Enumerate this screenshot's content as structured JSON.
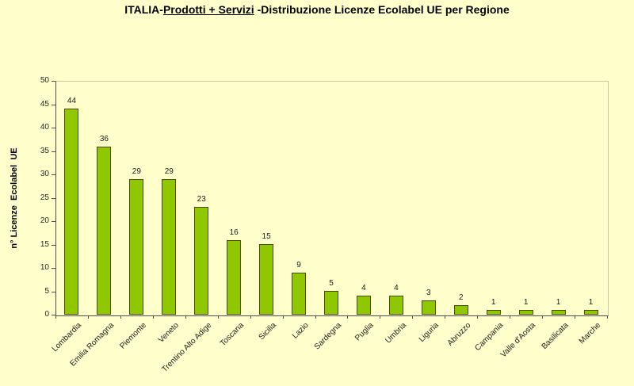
{
  "title": {
    "prefix": "ITALIA-",
    "underlined": "Prodotti + Servizi",
    "suffix": " -Distribuzione Licenze Ecolabel UE per Regione"
  },
  "chart_data": {
    "type": "bar",
    "title": "ITALIA-Prodotti + Servizi -Distribuzione Licenze Ecolabel UE per Regione",
    "categories": [
      "Lombardia",
      "Emilia Romagna",
      "Piemonte",
      "Veneto",
      "Trentino Alto Adige",
      "Toscana",
      "Sicilia",
      "Lazio",
      "Sardegna",
      "Puglia",
      "Umbria",
      "Liguria",
      "Abruzzo",
      "Campania",
      "Valle d'Aosta",
      "Basilicata",
      "Marche"
    ],
    "values": [
      44,
      36,
      29,
      29,
      23,
      16,
      15,
      9,
      5,
      4,
      4,
      3,
      2,
      1,
      1,
      1,
      1
    ],
    "xlabel": "",
    "ylabel": "n° Licenze  Ecolabel  UE",
    "ylim": [
      0,
      50
    ],
    "yticks": [
      0,
      5,
      10,
      15,
      20,
      25,
      30,
      35,
      40,
      45,
      50
    ],
    "grid": false,
    "legend": "none",
    "value_labels": true,
    "colors": {
      "background": "#FFFFCC",
      "bar_fill": "#8FC800",
      "bar_border": "#4A4A00",
      "axis": "#4D4D4D",
      "plot_border": "#C5C9A0",
      "text": "#1A1A1A"
    }
  }
}
